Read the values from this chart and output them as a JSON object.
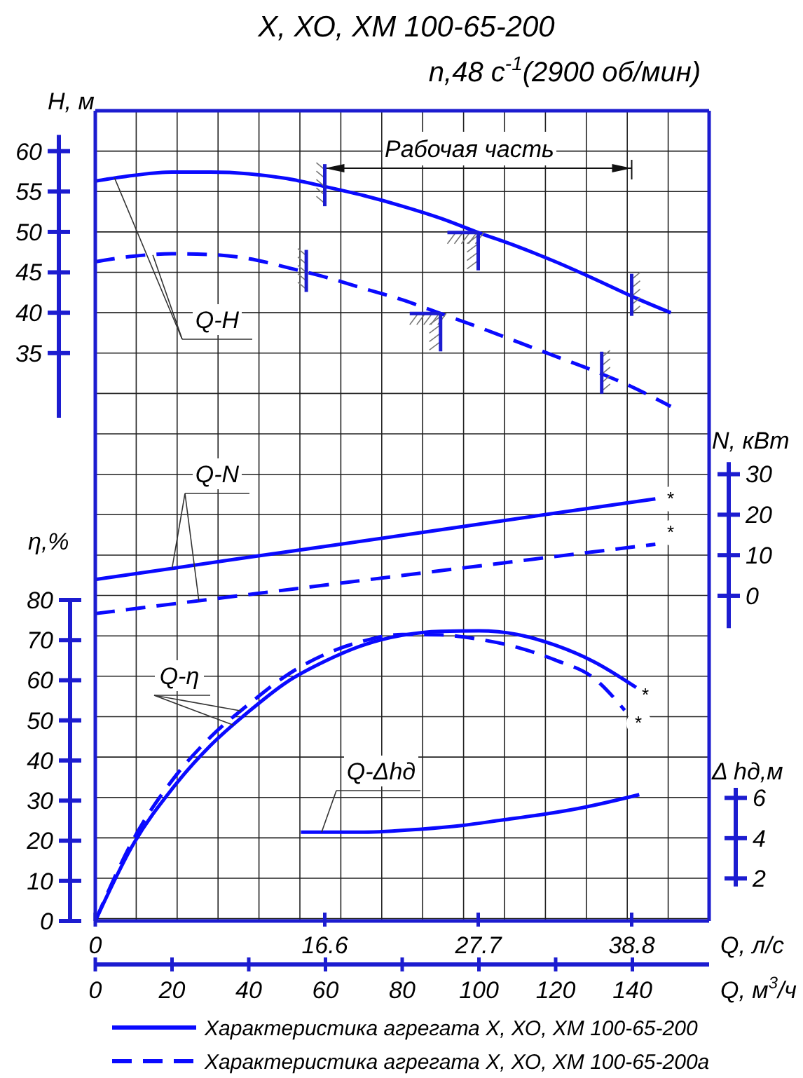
{
  "chart_data": [
    {
      "type": "line",
      "title": "Х, ХО, ХМ 100-65-200",
      "subtitle": "n,48 с$^{-1}$(2900 об/мин)",
      "ylabel": "H, м",
      "annotations": [
        {
          "text": "Q-H",
          "x": 5,
          "y": 56.7
        },
        "Рабочая часть"
      ],
      "xlim": [
        0,
        160
      ],
      "ylim": [
        27,
        62
      ],
      "yticks": [
        35,
        40,
        45,
        50,
        55,
        60
      ],
      "tick_labels": "y",
      "grid": true,
      "x": [
        0,
        10,
        20,
        30,
        40,
        50,
        60,
        70,
        80,
        90,
        100,
        110,
        120,
        130,
        140,
        150
      ],
      "series": [
        {
          "color": "#0a0aff",
          "line_style": "solid",
          "values": [
            56.3,
            57.0,
            57.4,
            57.4,
            57.2,
            56.6,
            55.6,
            54.5,
            53.2,
            51.7,
            49.9,
            48.2,
            46.3,
            44.2,
            42.0,
            40.0
          ]
        },
        {
          "color": "#0a0aff",
          "line_style": "dashed",
          "values": [
            46.3,
            47.0,
            47.3,
            47.2,
            46.7,
            45.6,
            44.4,
            43.0,
            41.6,
            39.9,
            38.2,
            36.4,
            34.6,
            32.8,
            30.8,
            28.4
          ]
        }
      ]
    },
    {
      "type": "line",
      "ylabel": "N, кВт",
      "annotations": [
        {
          "text": "Q-N",
          "x": 20,
          "y": 6.7
        },
        "*",
        "*"
      ],
      "xlim": [
        0,
        160
      ],
      "ylim": [
        -8,
        33
      ],
      "yticks": [
        0,
        10,
        20,
        30
      ],
      "tick_labels": "y",
      "x": [
        0,
        40,
        80,
        120,
        146
      ],
      "series": [
        {
          "color": "#0a0aff",
          "line_style": "solid",
          "values": [
            4.0,
            9.5,
            14.9,
            20.4,
            23.9
          ]
        },
        {
          "color": "#0a0aff",
          "line_style": "dashed",
          "values": [
            -4.4,
            0.3,
            5.0,
            9.7,
            12.7
          ]
        }
      ]
    },
    {
      "type": "line",
      "ylabel": "η,%",
      "xlabel": "Q, м$^{3}$/ч",
      "x2label": "Q, л/с",
      "annotations": [
        {
          "text": "Q-η",
          "x": 36,
          "y": 48.8
        },
        "*",
        "*"
      ],
      "xlim": [
        0,
        160
      ],
      "xticks": [
        0,
        20,
        40,
        60,
        80,
        100,
        120,
        140
      ],
      "x2lim": [
        0,
        44.4
      ],
      "x2ticks": [
        0,
        16.6,
        27.7,
        38.8
      ],
      "ylim": [
        0,
        80
      ],
      "yticks": [
        0,
        10,
        20,
        30,
        40,
        50,
        60,
        70,
        80
      ],
      "legend": "bottom",
      "series": [
        {
          "name": "Характеристика агрегата Х, ХО, ХМ 100-65-200",
          "color": "#0a0aff",
          "line_style": "solid",
          "x": [
            0,
            10,
            20,
            30,
            40,
            50,
            60,
            70,
            80,
            90,
            100,
            110,
            120,
            130,
            141
          ],
          "values": [
            0,
            19.3,
            32.9,
            43.7,
            52.2,
            59.6,
            64.8,
            68.8,
            71.2,
            72.2,
            72.3,
            71.4,
            68.7,
            64.6,
            58.2
          ]
        },
        {
          "name": "Характеристика агрегата Х, ХО, ХМ 100-65-200а",
          "color": "#0a0aff",
          "line_style": "dashed",
          "x": [
            0,
            10,
            20,
            30,
            40,
            50,
            60,
            70,
            80,
            90,
            100,
            110,
            120,
            130,
            138
          ],
          "values": [
            0,
            20.5,
            35.0,
            45.8,
            54.0,
            61.3,
            66.5,
            69.8,
            71.4,
            71.3,
            70.2,
            68.2,
            65.0,
            60.5,
            52.5
          ]
        }
      ]
    },
    {
      "type": "line",
      "ylabel": "Δ hд,м",
      "annotations": [
        {
          "text": "Q-Δhд",
          "x": 59,
          "y": 4.3
        }
      ],
      "xlim": [
        0,
        160
      ],
      "ylim": [
        1.6,
        6.5
      ],
      "yticks": [
        2,
        4,
        6
      ],
      "tick_labels": "y",
      "x": [
        53.6,
        70,
        85,
        95.6,
        106,
        116,
        126.6,
        141.8
      ],
      "series": [
        {
          "color": "#0a0aff",
          "line_style": "solid",
          "values": [
            4.3,
            4.3,
            4.45,
            4.63,
            4.9,
            5.16,
            5.5,
            6.16
          ]
        }
      ]
    }
  ]
}
